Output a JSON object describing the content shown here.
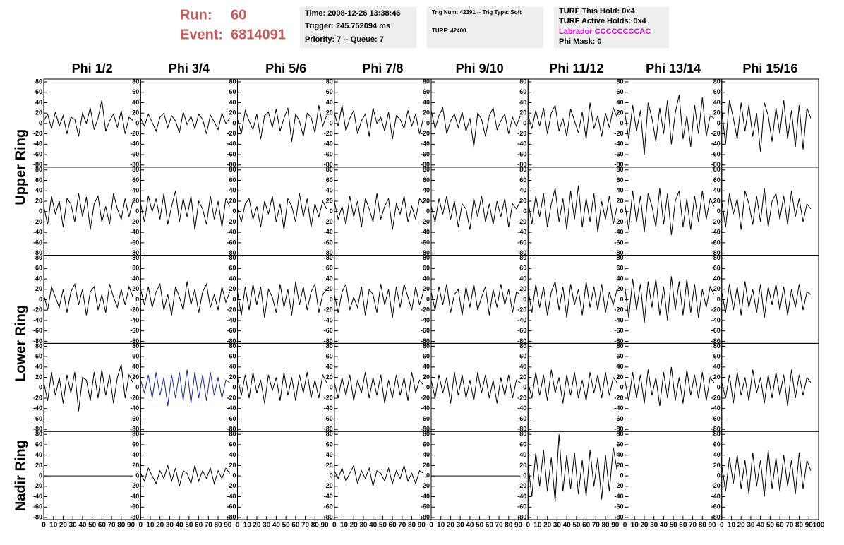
{
  "header": {
    "run_label": "Run:",
    "run": 60,
    "event_label": "Event:",
    "event": 6814091
  },
  "info": {
    "time": "Time: 2008-12-26 13:38:46",
    "trigger": "Trigger: 245.752094 ms",
    "priority": "Priority: 7 -- Queue: 7",
    "trig_num": "Trig Num: 42391 -- Trig Type: Soft",
    "turf": "TURF: 42400",
    "turf_hold": "TURF This Hold: 0x4",
    "turf_active": "TURF Active Holds: 0x4",
    "labrador": "Labrador CCCCCCCCAC",
    "phi_mask": "Phi Mask: 0"
  },
  "columns": [
    "Phi 1/2",
    "Phi 3/4",
    "Phi 5/6",
    "Phi 7/8",
    "Phi 9/10",
    "Phi 11/12",
    "Phi 13/14",
    "Phi 15/16"
  ],
  "rows": [
    "Upper Ring",
    "Lower Ring",
    "Nadir Ring"
  ],
  "chart_data": {
    "type": "line",
    "xlim": [
      0,
      100
    ],
    "ylim": [
      -80,
      80
    ],
    "xticks": [
      0,
      10,
      20,
      30,
      40,
      50,
      60,
      70,
      80,
      90,
      100
    ],
    "yticks": [
      80,
      60,
      40,
      20,
      0,
      -20,
      -40,
      -60,
      -80
    ],
    "x": [
      0,
      4,
      8,
      12,
      16,
      20,
      24,
      28,
      32,
      36,
      40,
      44,
      48,
      52,
      56,
      60,
      64,
      68,
      72,
      76,
      80,
      84,
      88,
      92
    ],
    "series": [
      {
        "color": "#000000",
        "values": [
          5,
          18,
          -10,
          22,
          -5,
          15,
          -20,
          12,
          8,
          -25,
          20,
          0,
          30,
          -12,
          10,
          45,
          -15,
          5,
          18,
          -8,
          25,
          -20,
          12,
          6
        ]
      },
      {
        "color": "#000000",
        "values": [
          10,
          -5,
          18,
          2,
          -15,
          12,
          20,
          -8,
          15,
          5,
          -18,
          22,
          -2,
          14,
          -10,
          18,
          8,
          -20,
          16,
          3,
          -12,
          20,
          0,
          10
        ]
      },
      {
        "color": "#000000",
        "values": [
          8,
          -20,
          25,
          5,
          -12,
          18,
          -30,
          15,
          22,
          -8,
          28,
          -15,
          10,
          30,
          -35,
          18,
          5,
          -25,
          20,
          12,
          -18,
          35,
          -5,
          15
        ]
      },
      {
        "color": "#000000",
        "values": [
          20,
          -5,
          35,
          -15,
          10,
          25,
          -20,
          5,
          18,
          -25,
          30,
          0,
          12,
          -15,
          22,
          -30,
          15,
          8,
          -10,
          25,
          -5,
          18,
          -20,
          10
        ]
      },
      {
        "color": "#000000",
        "values": [
          25,
          -10,
          15,
          30,
          -20,
          5,
          18,
          -8,
          22,
          -15,
          10,
          -45,
          20,
          8,
          -25,
          15,
          30,
          -12,
          5,
          18,
          -20,
          12,
          -5,
          15
        ]
      },
      {
        "color": "#000000",
        "values": [
          15,
          -10,
          25,
          -5,
          30,
          -20,
          20,
          35,
          -15,
          10,
          -25,
          28,
          5,
          -18,
          22,
          -30,
          40,
          -10,
          15,
          -25,
          20,
          -8,
          30,
          12
        ]
      },
      {
        "color": "#000000",
        "values": [
          20,
          -30,
          35,
          -15,
          25,
          -60,
          40,
          10,
          -35,
          30,
          -20,
          45,
          -40,
          20,
          55,
          -30,
          15,
          -45,
          35,
          -20,
          50,
          -25,
          15,
          10
        ]
      },
      {
        "color": "#000000",
        "values": [
          25,
          -40,
          45,
          10,
          -30,
          40,
          -15,
          35,
          -25,
          20,
          -55,
          40,
          15,
          -35,
          30,
          -20,
          45,
          -30,
          25,
          -45,
          35,
          -50,
          30,
          10
        ]
      },
      {
        "color": "#000000",
        "values": [
          10,
          -25,
          30,
          -5,
          20,
          -30,
          25,
          15,
          -20,
          35,
          -10,
          28,
          -35,
          15,
          30,
          -20,
          10,
          -25,
          35,
          5,
          -15,
          25,
          -10,
          20
        ]
      },
      {
        "color": "#000000",
        "values": [
          15,
          -20,
          30,
          0,
          25,
          -15,
          35,
          -25,
          10,
          40,
          -20,
          25,
          -10,
          30,
          -35,
          20,
          5,
          -25,
          30,
          -15,
          20,
          -30,
          25,
          10
        ]
      },
      {
        "color": "#000000",
        "values": [
          5,
          -20,
          15,
          25,
          -15,
          10,
          -30,
          20,
          -5,
          30,
          -20,
          15,
          -35,
          25,
          10,
          -20,
          35,
          -10,
          25,
          -30,
          15,
          -10,
          20,
          5
        ]
      },
      {
        "color": "#000000",
        "values": [
          20,
          -15,
          10,
          -25,
          30,
          -10,
          20,
          -30,
          25,
          5,
          -20,
          35,
          -15,
          10,
          25,
          -35,
          15,
          -5,
          30,
          -20,
          10,
          -15,
          25,
          15
        ]
      },
      {
        "color": "#000000",
        "values": [
          10,
          -20,
          25,
          -5,
          30,
          -15,
          20,
          -30,
          15,
          5,
          -35,
          25,
          -10,
          30,
          -20,
          15,
          -25,
          20,
          -10,
          25,
          -30,
          15,
          5,
          20
        ]
      },
      {
        "color": "#000000",
        "values": [
          20,
          -25,
          30,
          -10,
          35,
          -30,
          15,
          45,
          -20,
          25,
          -35,
          40,
          -15,
          50,
          -30,
          25,
          -20,
          35,
          -40,
          20,
          -15,
          30,
          -25,
          10
        ]
      },
      {
        "color": "#000000",
        "values": [
          15,
          -35,
          40,
          -20,
          30,
          -40,
          35,
          10,
          -30,
          45,
          -25,
          35,
          -45,
          20,
          40,
          -30,
          25,
          -35,
          30,
          -20,
          40,
          -15,
          25,
          10
        ]
      },
      {
        "color": "#000000",
        "values": [
          20,
          -30,
          35,
          -5,
          25,
          -35,
          40,
          15,
          -25,
          30,
          -20,
          45,
          -30,
          20,
          35,
          -15,
          30,
          -25,
          40,
          -10,
          25,
          -20,
          15,
          5
        ]
      },
      {
        "color": "#000000",
        "values": [
          10,
          -20,
          25,
          5,
          -15,
          20,
          -25,
          15,
          30,
          -10,
          20,
          -30,
          15,
          25,
          -20,
          10,
          -25,
          30,
          5,
          -15,
          20,
          -10,
          25,
          5
        ]
      },
      {
        "color": "#000000",
        "values": [
          20,
          -10,
          25,
          -15,
          15,
          30,
          -20,
          10,
          -30,
          25,
          5,
          -20,
          35,
          -10,
          20,
          -25,
          15,
          30,
          -15,
          10,
          -20,
          25,
          -5,
          15
        ]
      },
      {
        "color": "#000000",
        "values": [
          15,
          -30,
          25,
          -20,
          30,
          -10,
          25,
          -35,
          20,
          5,
          -25,
          30,
          -15,
          20,
          -30,
          35,
          -10,
          25,
          -20,
          15,
          30,
          -25,
          10,
          20
        ]
      },
      {
        "color": "#000000",
        "values": [
          10,
          -25,
          15,
          30,
          -20,
          5,
          -15,
          25,
          -30,
          20,
          10,
          -25,
          30,
          -10,
          20,
          -35,
          25,
          -15,
          30,
          5,
          -20,
          25,
          -10,
          15
        ]
      },
      {
        "color": "#000000",
        "values": [
          15,
          -20,
          25,
          -10,
          30,
          -25,
          10,
          20,
          -30,
          25,
          -15,
          30,
          -20,
          5,
          25,
          -30,
          20,
          -15,
          30,
          -10,
          20,
          -25,
          15,
          10
        ]
      },
      {
        "color": "#000000",
        "values": [
          20,
          -25,
          30,
          -15,
          25,
          -30,
          15,
          35,
          -20,
          25,
          -35,
          30,
          -10,
          20,
          -30,
          35,
          -15,
          25,
          -20,
          30,
          -25,
          15,
          -10,
          20
        ]
      },
      {
        "color": "#000000",
        "values": [
          25,
          -35,
          40,
          -20,
          30,
          -45,
          35,
          -15,
          40,
          -30,
          25,
          -40,
          45,
          -20,
          35,
          -30,
          40,
          -25,
          30,
          -35,
          20,
          -15,
          25,
          10
        ]
      },
      {
        "color": "#000000",
        "values": [
          15,
          -25,
          30,
          -20,
          25,
          -30,
          35,
          -15,
          20,
          -25,
          30,
          -35,
          25,
          -10,
          30,
          -20,
          25,
          -30,
          20,
          -15,
          30,
          -20,
          15,
          10
        ]
      },
      {
        "color": "#000000",
        "values": [
          10,
          -25,
          30,
          -15,
          20,
          -30,
          25,
          -10,
          30,
          -45,
          20,
          15,
          -25,
          30,
          -20,
          35,
          -15,
          25,
          -30,
          20,
          45,
          -20,
          25,
          10
        ]
      },
      {
        "color": "#1f2a8f",
        "values": [
          15,
          -10,
          25,
          -20,
          30,
          -15,
          20,
          -35,
          25,
          -20,
          30,
          -25,
          35,
          -30,
          30,
          -20,
          25,
          -25,
          30,
          -15,
          20,
          -20,
          15,
          10
        ]
      },
      {
        "color": "#000000",
        "values": [
          20,
          -15,
          25,
          -20,
          30,
          -10,
          15,
          -30,
          25,
          -5,
          20,
          -25,
          30,
          -15,
          20,
          -25,
          25,
          -10,
          30,
          -20,
          15,
          -20,
          25,
          10
        ]
      },
      {
        "color": "#000000",
        "values": [
          10,
          -20,
          20,
          -15,
          25,
          -25,
          15,
          -10,
          30,
          -20,
          20,
          -15,
          25,
          -30,
          15,
          -20,
          25,
          -15,
          20,
          -25,
          30,
          -10,
          15,
          5
        ]
      },
      {
        "color": "#000000",
        "values": [
          15,
          -20,
          25,
          -10,
          20,
          -30,
          30,
          -15,
          25,
          -20,
          15,
          -25,
          30,
          -10,
          25,
          -20,
          15,
          -30,
          20,
          -15,
          25,
          -20,
          15,
          10
        ]
      },
      {
        "color": "#000000",
        "values": [
          10,
          -20,
          30,
          -15,
          25,
          -25,
          35,
          -10,
          20,
          -30,
          25,
          -15,
          30,
          -20,
          15,
          -25,
          30,
          -10,
          25,
          -20,
          30,
          -15,
          20,
          10
        ]
      },
      {
        "color": "#000000",
        "values": [
          15,
          -25,
          30,
          -20,
          25,
          -30,
          35,
          -15,
          20,
          -35,
          30,
          -20,
          40,
          -25,
          20,
          -30,
          35,
          -15,
          25,
          -20,
          30,
          -25,
          20,
          10
        ]
      },
      {
        "color": "#000000",
        "values": [
          10,
          -20,
          25,
          -30,
          30,
          -15,
          20,
          -25,
          35,
          -10,
          20,
          -30,
          25,
          -20,
          30,
          -15,
          25,
          -35,
          35,
          -20,
          25,
          -15,
          20,
          10
        ]
      },
      {
        "color": "#000000",
        "values": [
          0,
          0,
          0,
          0,
          0,
          0,
          0,
          0,
          0,
          0,
          0,
          0,
          0,
          0,
          0,
          0,
          0,
          0,
          0,
          0,
          0,
          0,
          0,
          0
        ]
      },
      {
        "color": "#000000",
        "values": [
          5,
          -10,
          15,
          0,
          -15,
          10,
          -5,
          20,
          -10,
          15,
          -20,
          10,
          5,
          -15,
          20,
          -10,
          10,
          -5,
          15,
          -15,
          10,
          -5,
          15,
          5
        ]
      },
      {
        "color": "#000000",
        "values": [
          null,
          null,
          null,
          null,
          null,
          null,
          null,
          null,
          null,
          null,
          null,
          null,
          null,
          null,
          null,
          null,
          null,
          null,
          null,
          null,
          null,
          null,
          null,
          null
        ]
      },
      {
        "color": "#000000",
        "values": [
          10,
          -5,
          15,
          -10,
          5,
          20,
          -15,
          10,
          -5,
          15,
          -20,
          10,
          5,
          -10,
          15,
          -15,
          10,
          -5,
          20,
          -10,
          5,
          -15,
          10,
          5
        ]
      },
      {
        "color": "#000000",
        "values": [
          0,
          0,
          0,
          0,
          0,
          0,
          0,
          0,
          0,
          0,
          0,
          0,
          0,
          0,
          0,
          0,
          0,
          0,
          0,
          0,
          0,
          0,
          0,
          0
        ]
      },
      {
        "color": "#000000",
        "values": [
          20,
          -40,
          45,
          -20,
          50,
          -30,
          35,
          -50,
          80,
          -30,
          40,
          -25,
          45,
          -35,
          30,
          -40,
          50,
          -20,
          35,
          -45,
          40,
          -30,
          55,
          10
        ]
      },
      {
        "color": "#000000",
        "values": [
          null,
          null,
          null,
          null,
          null,
          null,
          null,
          null,
          null,
          null,
          null,
          null,
          null,
          null,
          null,
          null,
          null,
          null,
          null,
          null,
          null,
          null,
          null,
          null
        ]
      },
      {
        "color": "#000000",
        "values": [
          20,
          -30,
          35,
          -15,
          40,
          -25,
          30,
          -35,
          45,
          -20,
          30,
          -40,
          50,
          -25,
          35,
          -30,
          40,
          -20,
          30,
          -35,
          45,
          -25,
          30,
          10
        ]
      }
    ]
  }
}
